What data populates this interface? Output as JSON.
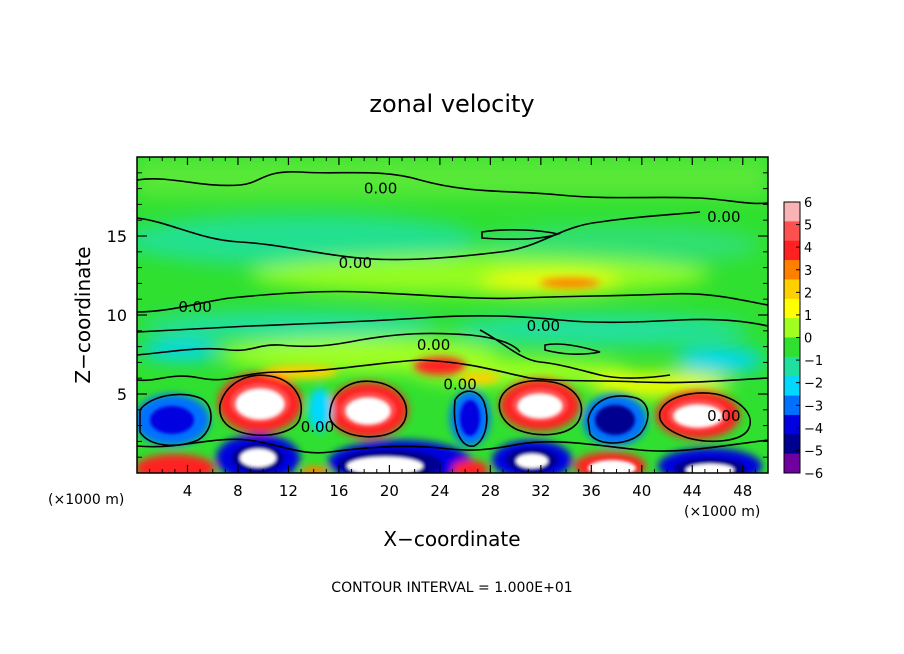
{
  "chart_data": {
    "type": "heatmap",
    "title": "zonal velocity",
    "xlabel": "X−coordinate",
    "ylabel": "Z−coordinate",
    "x_unit_left": "(×1000 m)",
    "x_unit_right": "(×1000 m)",
    "xlim": [
      0,
      50
    ],
    "ylim": [
      0,
      20
    ],
    "x_ticks": [
      4,
      8,
      12,
      16,
      20,
      24,
      28,
      32,
      36,
      40,
      44,
      48
    ],
    "y_ticks": [
      5,
      10,
      15
    ],
    "colorbar": {
      "min": -6,
      "max": 6,
      "ticks": [
        6,
        5,
        4,
        3,
        2,
        1,
        0,
        -1,
        -2,
        -3,
        -4,
        -5,
        -6
      ],
      "tick_labels": [
        "6",
        "5",
        "4",
        "3",
        "2",
        "1",
        "0",
        "−1",
        "−2",
        "−3",
        "−4",
        "−5",
        "−6"
      ],
      "colors": [
        "#f8b4b4",
        "#ff5050",
        "#ff2020",
        "#ff8000",
        "#ffd000",
        "#ffff00",
        "#a0ff20",
        "#30e030",
        "#20e0a0",
        "#00d8ff",
        "#0070ff",
        "#0000e0",
        "#000090",
        "#7000a0"
      ]
    },
    "contour_labels": [
      {
        "text": "0.00",
        "x": 19.3,
        "z": 18.0
      },
      {
        "text": "0.00",
        "x": 46.5,
        "z": 16.2
      },
      {
        "text": "0.00",
        "x": 17.3,
        "z": 13.3
      },
      {
        "text": "0.00",
        "x": 4.6,
        "z": 10.5
      },
      {
        "text": "0.00",
        "x": 32.2,
        "z": 9.3
      },
      {
        "text": "0.00",
        "x": 23.5,
        "z": 8.1
      },
      {
        "text": "0.00",
        "x": 25.6,
        "z": 5.6
      },
      {
        "text": "0.00",
        "x": 14.3,
        "z": 2.9
      },
      {
        "text": "0.00",
        "x": 46.5,
        "z": 3.6
      }
    ],
    "footer": "CONTOUR INTERVAL = 1.000E+01"
  }
}
